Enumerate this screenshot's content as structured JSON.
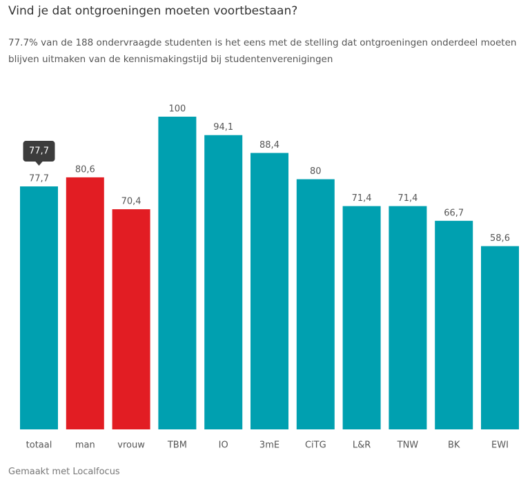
{
  "chart_data": {
    "type": "bar",
    "title": "Vind je dat ontgroeningen moeten voortbestaan?",
    "subtitle": "77.7% van de 188 ondervraagde studenten is het eens met de stelling dat ontgroeningen onderdeel moeten blijven uitmaken van de kennismakingstijd bij studentenverenigingen",
    "footer": "Gemaakt met Localfocus",
    "categories": [
      "totaal",
      "man",
      "vrouw",
      "TBM",
      "IO",
      "3mE",
      "CiTG",
      "L&R",
      "TNW",
      "BK",
      "EWI"
    ],
    "values": [
      77.7,
      80.6,
      70.4,
      100,
      94.1,
      88.4,
      80,
      71.4,
      71.4,
      66.7,
      58.6
    ],
    "value_labels": [
      "77,7",
      "80,6",
      "70,4",
      "100",
      "94,1",
      "88,4",
      "80",
      "71,4",
      "71,4",
      "66,7",
      "58,6"
    ],
    "colors": [
      "#00a0b0",
      "#e21d23",
      "#e21d23",
      "#00a0b0",
      "#00a0b0",
      "#00a0b0",
      "#00a0b0",
      "#00a0b0",
      "#00a0b0",
      "#00a0b0",
      "#00a0b0"
    ],
    "ylim": [
      0,
      100
    ],
    "tooltip_index": 0
  }
}
